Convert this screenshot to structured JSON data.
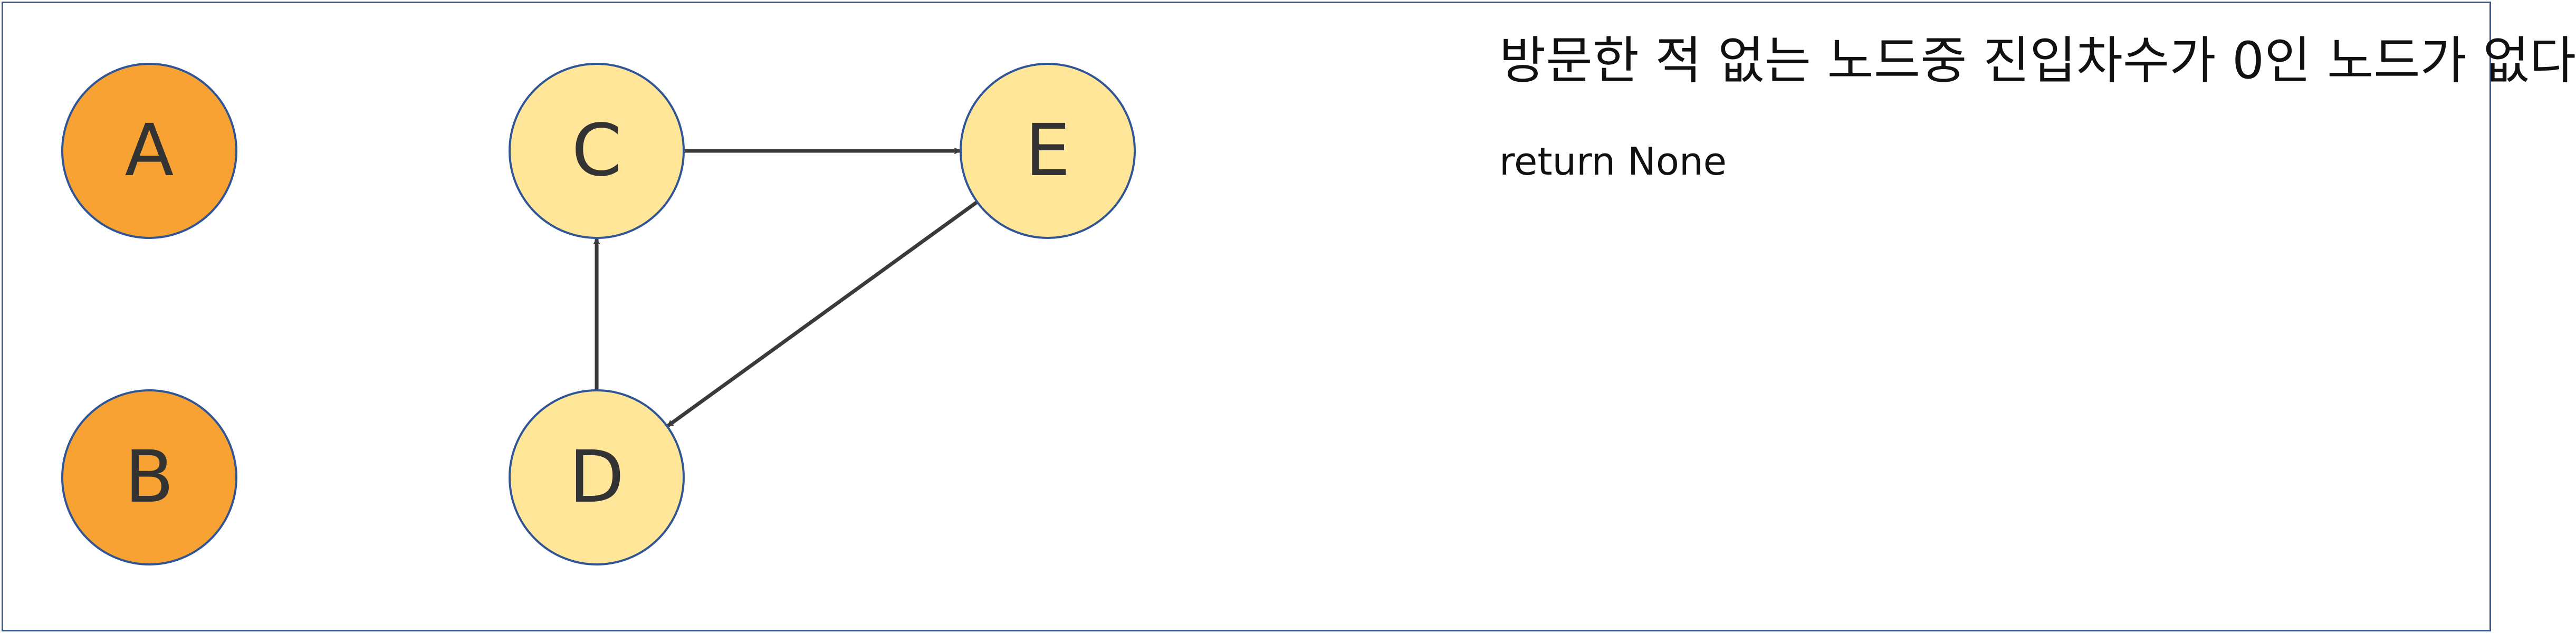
{
  "message": "방문한 적 없는 노드중 진입차수가 0인 노드가 없다",
  "return_text": "return None",
  "colors": {
    "visited_fill": "#f7a233",
    "unvisited_fill": "#ffe699",
    "node_stroke": "#2f5597",
    "edge": "#3a3a3a",
    "frame": "#3b5a92"
  },
  "nodes": [
    {
      "id": "A",
      "label": "A",
      "state": "visited"
    },
    {
      "id": "B",
      "label": "B",
      "state": "visited"
    },
    {
      "id": "C",
      "label": "C",
      "state": "unvisited"
    },
    {
      "id": "D",
      "label": "D",
      "state": "unvisited"
    },
    {
      "id": "E",
      "label": "E",
      "state": "unvisited"
    }
  ],
  "edges": [
    {
      "from": "C",
      "to": "E"
    },
    {
      "from": "E",
      "to": "D"
    },
    {
      "from": "D",
      "to": "C"
    }
  ]
}
